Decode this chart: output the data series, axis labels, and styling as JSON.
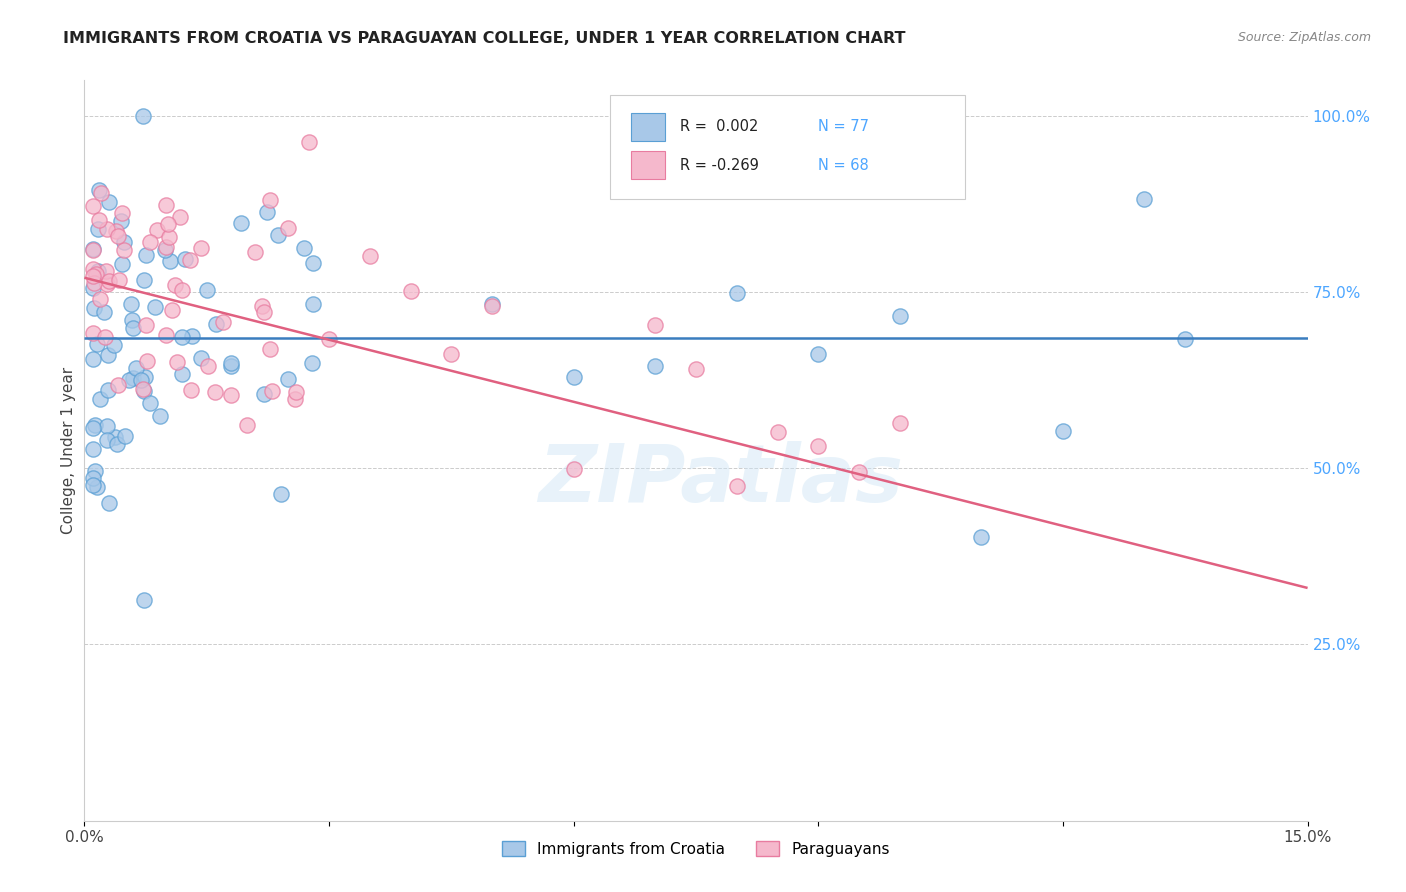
{
  "title": "IMMIGRANTS FROM CROATIA VS PARAGUAYAN COLLEGE, UNDER 1 YEAR CORRELATION CHART",
  "source": "Source: ZipAtlas.com",
  "ylabel": "College, Under 1 year",
  "xmin": 0.0,
  "xmax": 0.15,
  "ymin": 0.0,
  "ymax": 1.05,
  "x_ticks": [
    0.0,
    0.03,
    0.06,
    0.09,
    0.12,
    0.15
  ],
  "x_tick_labels": [
    "0.0%",
    "",
    "",
    "",
    "",
    "15.0%"
  ],
  "y_ticks_right": [
    0.25,
    0.5,
    0.75,
    1.0
  ],
  "y_tick_labels_right": [
    "25.0%",
    "50.0%",
    "75.0%",
    "100.0%"
  ],
  "color_blue": "#a8c8e8",
  "color_pink": "#f5b8cc",
  "color_blue_edge": "#5a9fd4",
  "color_pink_edge": "#e87ca0",
  "color_trend_blue": "#3a7dbf",
  "color_trend_pink": "#e06080",
  "watermark": "ZIPatlas",
  "legend_label_blue": "Immigrants from Croatia",
  "legend_label_pink": "Paraguayans",
  "blue_trend_y0": 0.685,
  "blue_trend_y1": 0.685,
  "pink_trend_y0": 0.77,
  "pink_trend_y1": 0.33,
  "grid_color": "#cccccc",
  "right_tick_color": "#4da6ff",
  "title_color": "#222222",
  "source_color": "#888888"
}
